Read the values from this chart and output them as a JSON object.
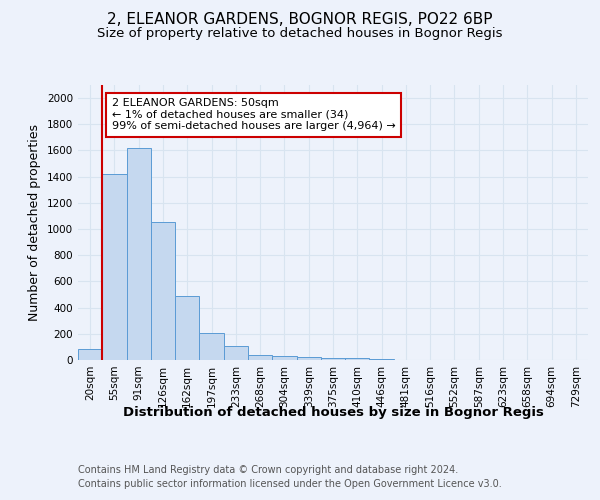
{
  "title": "2, ELEANOR GARDENS, BOGNOR REGIS, PO22 6BP",
  "subtitle": "Size of property relative to detached houses in Bognor Regis",
  "xlabel": "Distribution of detached houses by size in Bognor Regis",
  "ylabel": "Number of detached properties",
  "bins": [
    "20sqm",
    "55sqm",
    "91sqm",
    "126sqm",
    "162sqm",
    "197sqm",
    "233sqm",
    "268sqm",
    "304sqm",
    "339sqm",
    "375sqm",
    "410sqm",
    "446sqm",
    "481sqm",
    "516sqm",
    "552sqm",
    "587sqm",
    "623sqm",
    "658sqm",
    "694sqm",
    "729sqm"
  ],
  "values": [
    85,
    1420,
    1620,
    1050,
    490,
    205,
    110,
    40,
    30,
    20,
    15,
    15,
    5,
    3,
    2,
    2,
    2,
    2,
    2,
    1,
    1
  ],
  "bar_color": "#c5d8ef",
  "bar_edge_color": "#5b9bd5",
  "highlight_color": "#cc0000",
  "annotation_text": "2 ELEANOR GARDENS: 50sqm\n← 1% of detached houses are smaller (34)\n99% of semi-detached houses are larger (4,964) →",
  "annotation_box_color": "#ffffff",
  "annotation_box_edge": "#cc0000",
  "ylim": [
    0,
    2100
  ],
  "yticks": [
    0,
    200,
    400,
    600,
    800,
    1000,
    1200,
    1400,
    1600,
    1800,
    2000
  ],
  "footer": "Contains HM Land Registry data © Crown copyright and database right 2024.\nContains public sector information licensed under the Open Government Licence v3.0.",
  "bg_color": "#edf2fb",
  "plot_bg": "#edf2fb",
  "grid_color": "#d8e4f0",
  "title_fontsize": 11,
  "subtitle_fontsize": 9.5,
  "tick_fontsize": 7.5,
  "ylabel_fontsize": 9,
  "xlabel_fontsize": 9.5,
  "footer_fontsize": 7,
  "annotation_fontsize": 8
}
